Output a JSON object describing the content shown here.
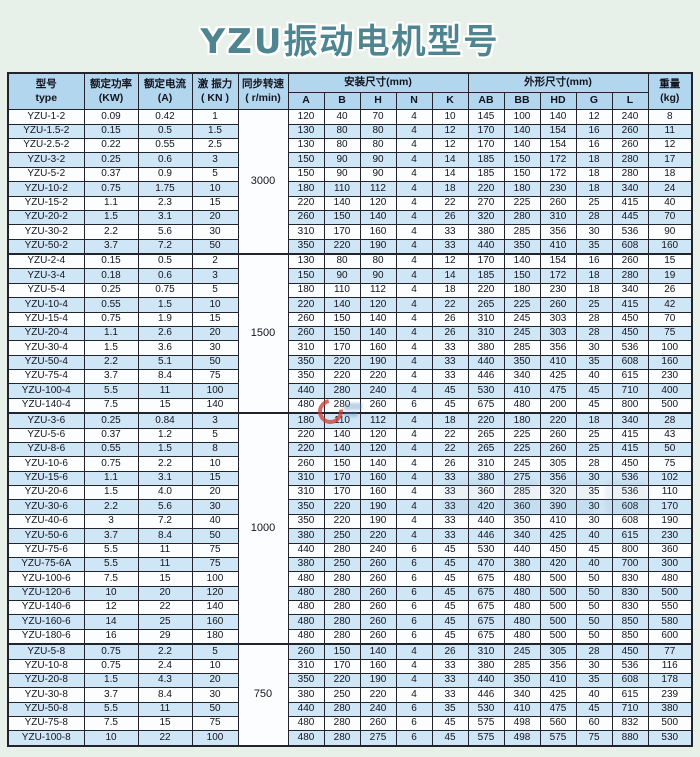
{
  "page": {
    "title": "YZU振动电机型号",
    "background_color": "#e8f1e9",
    "title_color": "#4e8590"
  },
  "table": {
    "colors": {
      "header_bg": "#b1d6ee",
      "stripe_bg": "#cfe6f6",
      "row_bg": "#fbfdfe",
      "border": "#23232e",
      "watermark_red": "#cf3b2f"
    },
    "headers": {
      "model": "型号\ntype",
      "power": "额定功率\n(KW)",
      "current": "额定电流\n(A)",
      "force": "激 振力\n( KN )",
      "speed": "同步转速\n( r/min)",
      "install_group": "安装尺寸(mm)",
      "outline_group": "外形尺寸(mm)",
      "weight": "重量\n(kg)",
      "install_cols": [
        "A",
        "B",
        "H",
        "N",
        "K"
      ],
      "outline_cols": [
        "AB",
        "BB",
        "HD",
        "G",
        "L"
      ]
    },
    "groups": [
      {
        "speed": "3000",
        "rows": [
          [
            "YZU-1-2",
            "0.09",
            "0.42",
            "1",
            "120",
            "40",
            "70",
            "4",
            "10",
            "145",
            "100",
            "140",
            "12",
            "240",
            "8"
          ],
          [
            "YZU-1.5-2",
            "0.15",
            "0.5",
            "1.5",
            "130",
            "80",
            "80",
            "4",
            "12",
            "170",
            "140",
            "154",
            "16",
            "260",
            "11"
          ],
          [
            "YZU-2.5-2",
            "0.22",
            "0.55",
            "2.5",
            "130",
            "80",
            "80",
            "4",
            "12",
            "170",
            "140",
            "154",
            "16",
            "260",
            "12"
          ],
          [
            "YZU-3-2",
            "0.25",
            "0.6",
            "3",
            "150",
            "90",
            "90",
            "4",
            "14",
            "185",
            "150",
            "172",
            "18",
            "280",
            "17"
          ],
          [
            "YZU-5-2",
            "0.37",
            "0.9",
            "5",
            "150",
            "90",
            "90",
            "4",
            "14",
            "185",
            "150",
            "172",
            "18",
            "280",
            "18"
          ],
          [
            "YZU-10-2",
            "0.75",
            "1.75",
            "10",
            "180",
            "110",
            "112",
            "4",
            "18",
            "220",
            "180",
            "230",
            "18",
            "340",
            "24"
          ],
          [
            "YZU-15-2",
            "1.1",
            "2.3",
            "15",
            "220",
            "140",
            "120",
            "4",
            "22",
            "270",
            "225",
            "260",
            "25",
            "415",
            "40"
          ],
          [
            "YZU-20-2",
            "1.5",
            "3.1",
            "20",
            "260",
            "150",
            "140",
            "4",
            "26",
            "320",
            "280",
            "310",
            "28",
            "445",
            "70"
          ],
          [
            "YZU-30-2",
            "2.2",
            "5.6",
            "30",
            "310",
            "170",
            "160",
            "4",
            "33",
            "380",
            "285",
            "356",
            "30",
            "536",
            "90"
          ],
          [
            "YZU-50-2",
            "3.7",
            "7.2",
            "50",
            "350",
            "220",
            "190",
            "4",
            "33",
            "440",
            "350",
            "410",
            "35",
            "608",
            "160"
          ]
        ]
      },
      {
        "speed": "1500",
        "rows": [
          [
            "YZU-2-4",
            "0.15",
            "0.5",
            "2",
            "130",
            "80",
            "80",
            "4",
            "12",
            "170",
            "140",
            "154",
            "16",
            "260",
            "15"
          ],
          [
            "YZU-3-4",
            "0.18",
            "0.6",
            "3",
            "150",
            "90",
            "90",
            "4",
            "14",
            "185",
            "150",
            "172",
            "18",
            "280",
            "19"
          ],
          [
            "YZU-5-4",
            "0.25",
            "0.75",
            "5",
            "180",
            "110",
            "112",
            "4",
            "18",
            "220",
            "180",
            "230",
            "18",
            "340",
            "26"
          ],
          [
            "YZU-10-4",
            "0.55",
            "1.5",
            "10",
            "220",
            "140",
            "120",
            "4",
            "22",
            "265",
            "225",
            "260",
            "25",
            "415",
            "42"
          ],
          [
            "YZU-15-4",
            "0.75",
            "1.9",
            "15",
            "260",
            "150",
            "140",
            "4",
            "26",
            "310",
            "245",
            "303",
            "28",
            "450",
            "70"
          ],
          [
            "YZU-20-4",
            "1.1",
            "2.6",
            "20",
            "260",
            "150",
            "140",
            "4",
            "26",
            "310",
            "245",
            "303",
            "28",
            "450",
            "75"
          ],
          [
            "YZU-30-4",
            "1.5",
            "3.6",
            "30",
            "310",
            "170",
            "160",
            "4",
            "33",
            "380",
            "285",
            "356",
            "30",
            "536",
            "100"
          ],
          [
            "YZU-50-4",
            "2.2",
            "5.1",
            "50",
            "350",
            "220",
            "190",
            "4",
            "33",
            "440",
            "350",
            "410",
            "35",
            "608",
            "160"
          ],
          [
            "YZU-75-4",
            "3.7",
            "8.4",
            "75",
            "350",
            "220",
            "220",
            "4",
            "33",
            "446",
            "340",
            "425",
            "40",
            "615",
            "230"
          ],
          [
            "YZU-100-4",
            "5.5",
            "11",
            "100",
            "440",
            "280",
            "240",
            "4",
            "45",
            "530",
            "410",
            "475",
            "45",
            "710",
            "400"
          ],
          [
            "YZU-140-4",
            "7.5",
            "15",
            "140",
            "480",
            "280",
            "260",
            "6",
            "45",
            "675",
            "480",
            "200",
            "45",
            "800",
            "500"
          ]
        ]
      },
      {
        "speed": "1000",
        "rows": [
          [
            "YZU-3-6",
            "0.25",
            "0.84",
            "3",
            "180",
            "110",
            "112",
            "4",
            "18",
            "220",
            "180",
            "220",
            "18",
            "340",
            "28"
          ],
          [
            "YZU-5-6",
            "0.37",
            "1.2",
            "5",
            "220",
            "140",
            "120",
            "4",
            "22",
            "265",
            "225",
            "260",
            "25",
            "415",
            "43"
          ],
          [
            "YZU-8-6",
            "0.55",
            "1.5",
            "8",
            "220",
            "140",
            "120",
            "4",
            "22",
            "265",
            "225",
            "260",
            "25",
            "415",
            "50"
          ],
          [
            "YZU-10-6",
            "0.75",
            "2.2",
            "10",
            "260",
            "150",
            "140",
            "4",
            "26",
            "310",
            "245",
            "305",
            "28",
            "450",
            "75"
          ],
          [
            "YZU-15-6",
            "1.1",
            "3.1",
            "15",
            "310",
            "170",
            "160",
            "4",
            "33",
            "380",
            "275",
            "356",
            "30",
            "536",
            "102"
          ],
          [
            "YZU-20-6",
            "1.5",
            "4.0",
            "20",
            "310",
            "170",
            "160",
            "4",
            "33",
            "360",
            "285",
            "320",
            "35",
            "536",
            "110"
          ],
          [
            "YZU-30-6",
            "2.2",
            "5.6",
            "30",
            "350",
            "220",
            "190",
            "4",
            "33",
            "420",
            "360",
            "390",
            "30",
            "608",
            "170"
          ],
          [
            "YZU-40-6",
            "3",
            "7.2",
            "40",
            "350",
            "220",
            "190",
            "4",
            "33",
            "440",
            "350",
            "410",
            "30",
            "608",
            "190"
          ],
          [
            "YZU-50-6",
            "3.7",
            "8.4",
            "50",
            "380",
            "250",
            "220",
            "4",
            "33",
            "446",
            "340",
            "425",
            "40",
            "615",
            "230"
          ],
          [
            "YZU-75-6",
            "5.5",
            "11",
            "75",
            "440",
            "280",
            "240",
            "6",
            "45",
            "530",
            "440",
            "450",
            "45",
            "800",
            "360"
          ],
          [
            "YZU-75-6A",
            "5.5",
            "11",
            "75",
            "380",
            "250",
            "260",
            "6",
            "45",
            "470",
            "380",
            "420",
            "40",
            "700",
            "300"
          ],
          [
            "YZU-100-6",
            "7.5",
            "15",
            "100",
            "480",
            "280",
            "260",
            "6",
            "45",
            "675",
            "480",
            "500",
            "50",
            "830",
            "480"
          ],
          [
            "YZU-120-6",
            "10",
            "20",
            "120",
            "480",
            "280",
            "260",
            "6",
            "45",
            "675",
            "480",
            "500",
            "50",
            "830",
            "500"
          ],
          [
            "YZU-140-6",
            "12",
            "22",
            "140",
            "480",
            "280",
            "260",
            "6",
            "45",
            "675",
            "480",
            "500",
            "50",
            "830",
            "550"
          ],
          [
            "YZU-160-6",
            "14",
            "25",
            "160",
            "480",
            "280",
            "260",
            "6",
            "45",
            "675",
            "480",
            "500",
            "50",
            "850",
            "580"
          ],
          [
            "YZU-180-6",
            "16",
            "29",
            "180",
            "480",
            "280",
            "260",
            "6",
            "45",
            "675",
            "480",
            "500",
            "50",
            "850",
            "600"
          ]
        ]
      },
      {
        "speed": "750",
        "rows": [
          [
            "YZU-5-8",
            "0.75",
            "2.2",
            "5",
            "260",
            "150",
            "140",
            "4",
            "26",
            "310",
            "245",
            "305",
            "28",
            "450",
            "77"
          ],
          [
            "YZU-10-8",
            "0.75",
            "2.4",
            "10",
            "310",
            "170",
            "160",
            "4",
            "33",
            "380",
            "285",
            "356",
            "30",
            "536",
            "116"
          ],
          [
            "YZU-20-8",
            "1.5",
            "4.3",
            "20",
            "350",
            "220",
            "190",
            "4",
            "33",
            "440",
            "350",
            "410",
            "35",
            "608",
            "178"
          ],
          [
            "YZU-30-8",
            "3.7",
            "8.4",
            "30",
            "380",
            "250",
            "220",
            "4",
            "33",
            "446",
            "340",
            "425",
            "40",
            "615",
            "239"
          ],
          [
            "YZU-50-8",
            "5.5",
            "11",
            "50",
            "440",
            "280",
            "240",
            "6",
            "35",
            "530",
            "410",
            "475",
            "45",
            "710",
            "380"
          ],
          [
            "YZU-75-8",
            "7.5",
            "15",
            "75",
            "480",
            "280",
            "260",
            "6",
            "45",
            "575",
            "498",
            "560",
            "60",
            "832",
            "500"
          ],
          [
            "YZU-100-8",
            "10",
            "22",
            "100",
            "480",
            "280",
            "275",
            "6",
            "45",
            "575",
            "498",
            "575",
            "75",
            "880",
            "530"
          ]
        ]
      }
    ]
  }
}
